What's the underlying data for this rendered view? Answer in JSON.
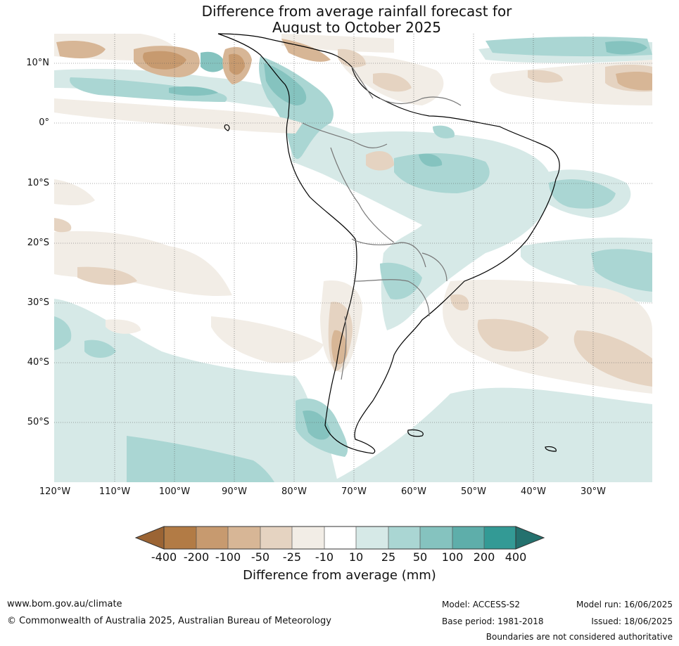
{
  "title": {
    "line1": "Difference from average rainfall forecast for",
    "line2": "August to October 2025"
  },
  "map": {
    "lat_labels": [
      "10°N",
      "0°",
      "10°S",
      "20°S",
      "30°S",
      "40°S",
      "50°S"
    ],
    "lon_labels": [
      "120°W",
      "110°W",
      "100°W",
      "90°W",
      "80°W",
      "70°W",
      "60°W",
      "50°W",
      "40°W",
      "30°W"
    ],
    "colors": {
      "dry_-400": "#9b6434",
      "dry_-200": "#b27b45",
      "dry_-100": "#c79a6f",
      "dry_-50": "#d7b696",
      "dry_-25": "#e5d3c1",
      "dry_-10": "#f2ede6",
      "neutral": "#ffffff",
      "wet_10": "#d6e9e7",
      "wet_25": "#aad6d3",
      "wet_50": "#85c3bf",
      "wet_100": "#5eaeaa",
      "wet_200": "#339a95",
      "wet_400": "#24716e"
    }
  },
  "colorbar": {
    "ticks": [
      "-400",
      "-200",
      "-100",
      "-50",
      "-25",
      "-10",
      "10",
      "25",
      "50",
      "100",
      "200",
      "400"
    ],
    "label": "Difference from average (mm)"
  },
  "footer": {
    "url": "www.bom.gov.au/climate",
    "copyright": "© Commonwealth of Australia 2025, Australian Bureau of Meteorology",
    "model": "Model: ACCESS-S2",
    "base_period": "Base period: 1981-2018",
    "model_run": "Model run: 16/06/2025",
    "issued": "Issued: 18/06/2025",
    "disclaimer": "Boundaries are not considered authoritative"
  }
}
